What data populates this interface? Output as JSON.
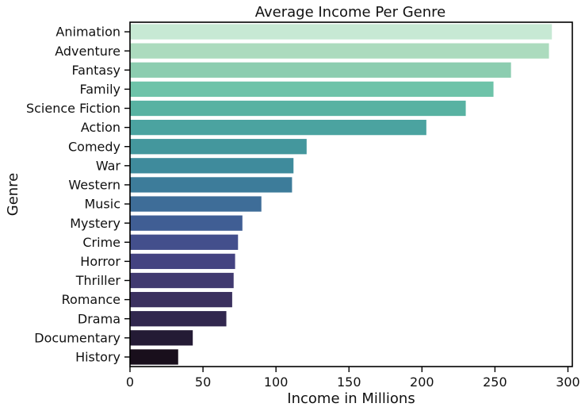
{
  "chart_data": {
    "type": "bar",
    "orientation": "horizontal",
    "title": "Average Income Per Genre",
    "xlabel": "Income in Millions",
    "ylabel": "Genre",
    "xlim": [
      0,
      303
    ],
    "xticks": [
      0,
      50,
      100,
      150,
      200,
      250,
      300
    ],
    "grid": false,
    "categories": [
      "Animation",
      "Adventure",
      "Fantasy",
      "Family",
      "Science Fiction",
      "Action",
      "Comedy",
      "War",
      "Western",
      "Music",
      "Mystery",
      "Crime",
      "Horror",
      "Thriller",
      "Romance",
      "Drama",
      "Documentary",
      "History"
    ],
    "values": [
      289,
      287,
      261,
      249,
      230,
      203,
      121,
      112,
      111,
      90,
      77,
      74,
      72,
      71,
      70,
      66,
      43,
      33
    ],
    "colors": [
      "#c7e9d4",
      "#acdbbe",
      "#8ccdb0",
      "#6ec3a9",
      "#58b2a2",
      "#4ba3a0",
      "#44979d",
      "#3f8b9c",
      "#3d7c9a",
      "#3e6d98",
      "#405e94",
      "#434f8c",
      "#444381",
      "#413a70",
      "#3b315f",
      "#31274e",
      "#241b35",
      "#190f1c"
    ]
  }
}
